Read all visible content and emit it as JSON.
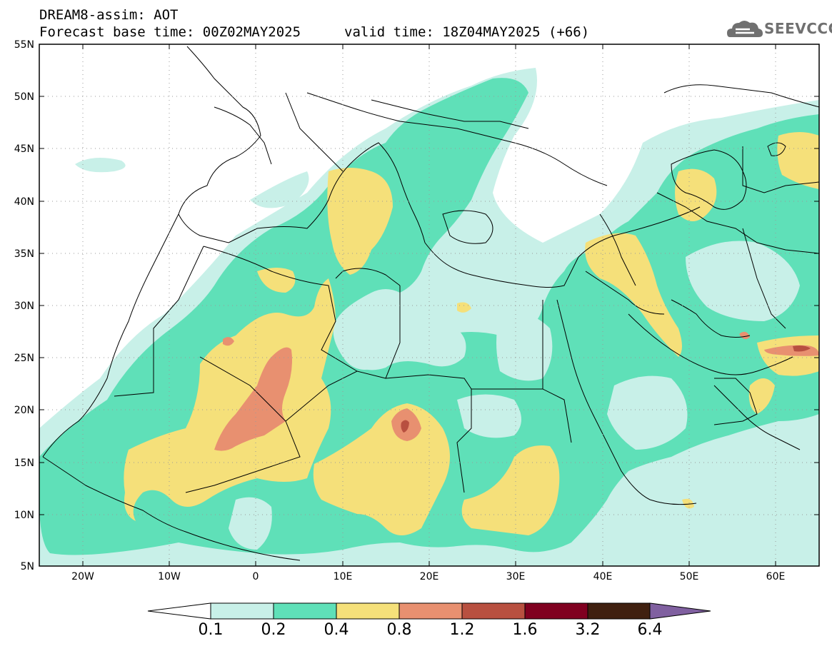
{
  "header": {
    "title": "DREAM8-assim: AOT",
    "base_time": "Forecast base time: 00Z02MAY2025",
    "valid_time": "valid time: 18Z04MAY2025 (+66)"
  },
  "logo": {
    "text": "SEEVCCC",
    "icon": "cloud-icon"
  },
  "map": {
    "lon_range": [
      -25,
      65
    ],
    "lat_range": [
      5,
      55
    ],
    "lat_ticks": [
      "5N",
      "10N",
      "15N",
      "20N",
      "25N",
      "30N",
      "35N",
      "40N",
      "45N",
      "50N",
      "55N"
    ],
    "lon_ticks": [
      "20W",
      "10W",
      "0",
      "10E",
      "20E",
      "30E",
      "40E",
      "50E",
      "60E"
    ],
    "gridlines": "dotted"
  },
  "colorbar": {
    "labels": [
      "0.1",
      "0.2",
      "0.4",
      "0.8",
      "1.2",
      "1.6",
      "3.2",
      "6.4"
    ],
    "colors": [
      "#ffffff",
      "#c8f0e8",
      "#5fe0b8",
      "#f5e07a",
      "#e89070",
      "#b85040",
      "#800020",
      "#402010",
      "#8060a0"
    ]
  },
  "legend_colors": {
    "water_bg": "#ffffff",
    "aot_02_04": "#5fe0b8",
    "aot_04_08": "#f5e07a",
    "aot_08_12": "#e89070",
    "aot_12_16": "#b85040"
  }
}
